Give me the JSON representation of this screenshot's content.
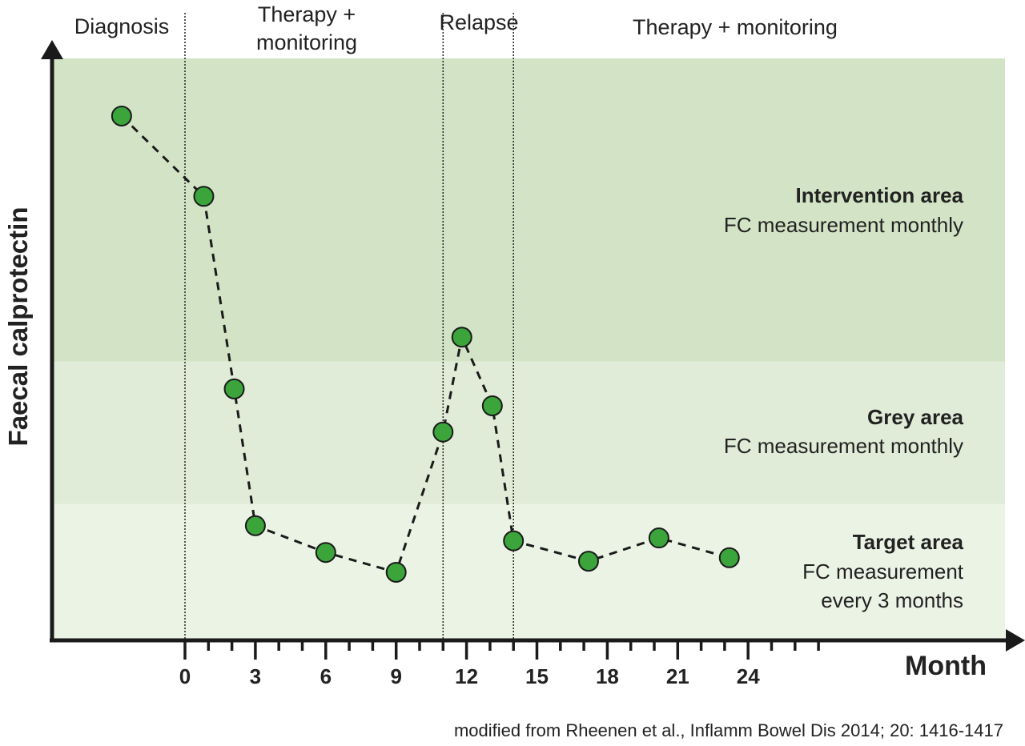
{
  "chart_data": {
    "type": "line",
    "title": "",
    "xlabel": "Month",
    "ylabel": "Faecal calprotectin",
    "xlim": [
      -5.7,
      35
    ],
    "ylim": [
      0,
      100
    ],
    "x_ticks": [
      0,
      3,
      6,
      9,
      12,
      15,
      18,
      21,
      24
    ],
    "x_minor_ticks_to": 27,
    "grid": false,
    "legend": "none",
    "colors": {
      "intervention_band": "#d2e4c5",
      "grey_band": "#e0ecd7",
      "target_band": "#ebf3e5",
      "point_fill": "#3ba53b",
      "line": "#1a1a1a"
    },
    "bands": [
      {
        "name": "intervention",
        "title": "Intervention area",
        "subtitle": "FC measurement monthly",
        "y_from": 47.9,
        "y_to": 100
      },
      {
        "name": "grey",
        "title": "Grey area",
        "subtitle": "FC measurement monthly",
        "y_from": 23.4,
        "y_to": 47.9
      },
      {
        "name": "target",
        "title": "Target area",
        "subtitle": "FC measurement",
        "subtitle2": "every 3 months",
        "y_from": 0,
        "y_to": 23.4
      }
    ],
    "phases": [
      {
        "label": "Diagnosis",
        "line2": ""
      },
      {
        "label": "Therapy +",
        "line2": "monitoring"
      },
      {
        "label": "Relapse",
        "line2": ""
      },
      {
        "label": "Therapy + monitoring",
        "line2": ""
      }
    ],
    "phase_boundaries": [
      0,
      11,
      14
    ],
    "series": [
      {
        "x": [
          -2.7,
          0.8,
          2.1,
          3,
          6,
          9,
          11,
          11.8,
          13.1,
          14,
          17.2,
          20.2,
          23.2
        ],
        "y": [
          90.1,
          76.3,
          43.2,
          19.7,
          15.1,
          11.7,
          35.8,
          52.1,
          40.3,
          17.1,
          13.6,
          17.6,
          14.2
        ]
      }
    ],
    "source": "modified from Rheenen et al., Inflamm Bowel Dis 2014; 20: 1416-1417"
  }
}
